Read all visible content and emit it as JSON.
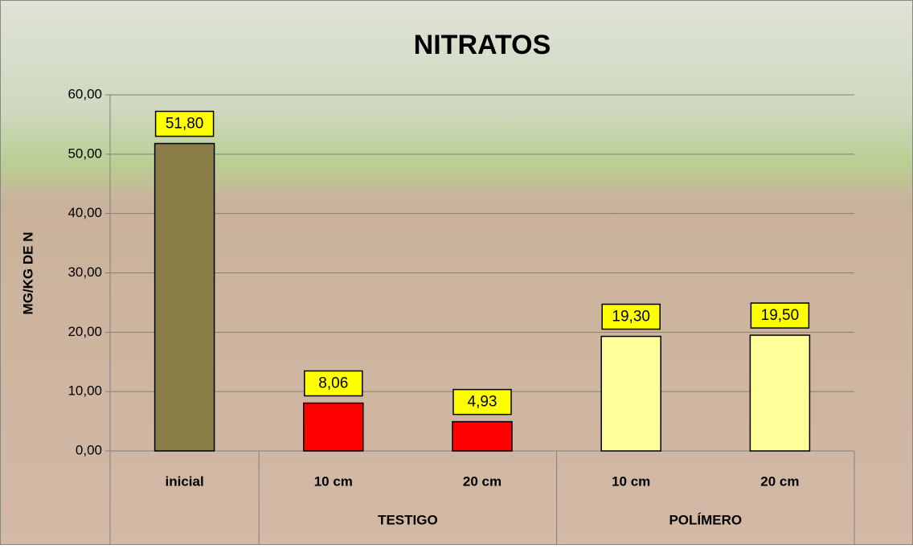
{
  "chart_data": {
    "type": "bar",
    "title": "NITRATOS",
    "ylabel": "MG/KG DE N",
    "categories": [
      "inicial",
      "10 cm",
      "20 cm",
      "10 cm",
      "20 cm"
    ],
    "groups": [
      null,
      "TESTIGO",
      "TESTIGO",
      "POLÍMERO",
      "POLÍMERO"
    ],
    "values": [
      51.8,
      8.06,
      4.93,
      19.3,
      19.5
    ],
    "value_labels": [
      "51,80",
      "8,06",
      "4,93",
      "19,30",
      "19,50"
    ],
    "colors": [
      "#8a7d48",
      "#ff0000",
      "#ff0000",
      "#ffff99",
      "#ffff99"
    ],
    "ylim": [
      0,
      60
    ],
    "yticks": [
      {
        "value": 0,
        "label": "0,00"
      },
      {
        "value": 10,
        "label": "10,00"
      },
      {
        "value": 20,
        "label": "20,00"
      },
      {
        "value": 30,
        "label": "30,00"
      },
      {
        "value": 40,
        "label": "40,00"
      },
      {
        "value": 50,
        "label": "50,00"
      },
      {
        "value": 60,
        "label": "60,00"
      }
    ],
    "grid": true
  }
}
